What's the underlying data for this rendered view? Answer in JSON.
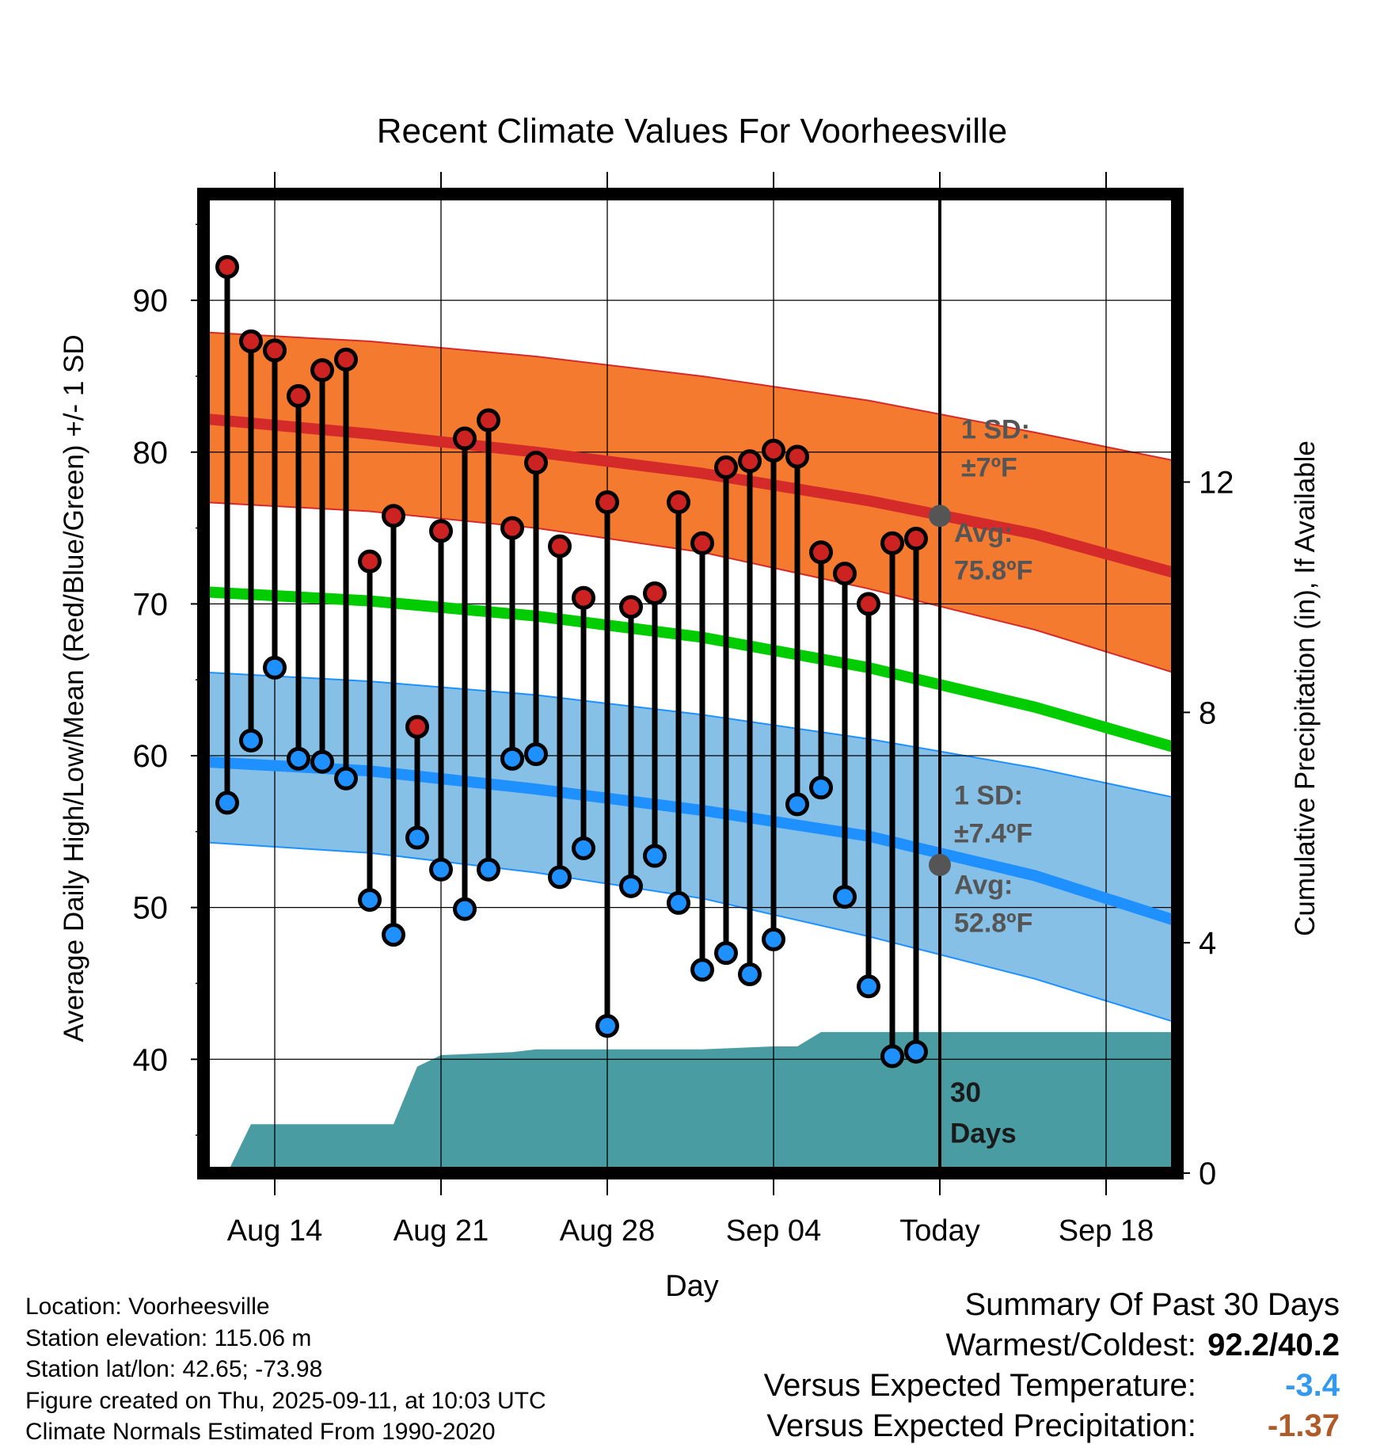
{
  "chart_data": {
    "type": "line",
    "title": "Recent Climate Values For Voorheesville",
    "xlabel": "Day",
    "ylabel": "Average Daily High/Low/Mean (Red/Blue/Green) +/- 1 SD",
    "y2label": "Cumulative Precipitation (in), If Available",
    "ylim": [
      32.5,
      97
    ],
    "y2lim": [
      0,
      17
    ],
    "y_ticks": [
      40,
      50,
      60,
      70,
      80,
      90
    ],
    "y2_ticks": [
      0,
      4,
      8,
      12
    ],
    "x_start": "2025-08-11",
    "x_end": "2025-09-21",
    "x_ticks": [
      {
        "date": "2025-08-14",
        "label": "Aug 14"
      },
      {
        "date": "2025-08-21",
        "label": "Aug 21"
      },
      {
        "date": "2025-08-28",
        "label": "Aug 28"
      },
      {
        "date": "2025-09-04",
        "label": "Sep 04"
      },
      {
        "date": "2025-09-11",
        "label": "Today"
      },
      {
        "date": "2025-09-18",
        "label": "Sep 18"
      }
    ],
    "today": "2025-09-11",
    "grid": true,
    "daily_obs": {
      "dates": [
        "2025-08-12",
        "2025-08-13",
        "2025-08-14",
        "2025-08-15",
        "2025-08-16",
        "2025-08-17",
        "2025-08-18",
        "2025-08-19",
        "2025-08-20",
        "2025-08-21",
        "2025-08-22",
        "2025-08-23",
        "2025-08-24",
        "2025-08-25",
        "2025-08-26",
        "2025-08-27",
        "2025-08-28",
        "2025-08-29",
        "2025-08-30",
        "2025-08-31",
        "2025-09-01",
        "2025-09-02",
        "2025-09-03",
        "2025-09-04",
        "2025-09-05",
        "2025-09-06",
        "2025-09-07",
        "2025-09-08",
        "2025-09-09",
        "2025-09-10"
      ],
      "high": [
        92.2,
        87.3,
        86.7,
        83.7,
        85.4,
        86.1,
        72.8,
        75.8,
        61.9,
        74.8,
        80.9,
        82.1,
        75.0,
        79.3,
        73.8,
        70.4,
        76.7,
        69.8,
        70.7,
        76.7,
        74.0,
        79.0,
        79.4,
        80.1,
        79.7,
        73.4,
        72.0,
        70.0,
        74.0,
        74.3
      ],
      "low": [
        56.9,
        61.0,
        65.8,
        59.8,
        59.6,
        58.5,
        50.5,
        48.2,
        54.6,
        52.5,
        49.9,
        52.5,
        59.8,
        60.1,
        52.0,
        53.9,
        42.2,
        51.4,
        53.4,
        50.3,
        45.9,
        47.0,
        45.6,
        47.9,
        56.8,
        57.9,
        50.7,
        44.8,
        40.2,
        40.5
      ]
    },
    "normals": {
      "dates": [
        "2025-08-11",
        "2025-08-18",
        "2025-08-25",
        "2025-09-01",
        "2025-09-08",
        "2025-09-15",
        "2025-09-21"
      ],
      "high_avg": [
        82.2,
        81.2,
        80.0,
        78.6,
        76.8,
        74.6,
        72.0
      ],
      "high_sd_upper": [
        87.9,
        87.3,
        86.3,
        85.0,
        83.4,
        81.3,
        79.4
      ],
      "high_sd_lower": [
        76.7,
        76.1,
        75.0,
        73.4,
        71.0,
        68.3,
        65.4
      ],
      "mean_avg": [
        70.8,
        70.2,
        69.2,
        67.8,
        65.8,
        63.2,
        60.5
      ],
      "low_avg": [
        59.6,
        59.0,
        57.8,
        56.4,
        54.7,
        52.1,
        49.1
      ],
      "low_sd_upper": [
        65.5,
        64.9,
        64.0,
        62.7,
        61.1,
        59.2,
        57.2
      ],
      "low_sd_lower": [
        54.3,
        53.6,
        52.3,
        50.6,
        48.1,
        45.3,
        42.4
      ]
    },
    "precip": {
      "dates": [
        "2025-08-11",
        "2025-08-12",
        "2025-08-13",
        "2025-08-14",
        "2025-08-15",
        "2025-08-18",
        "2025-08-19",
        "2025-08-20",
        "2025-08-21",
        "2025-08-24",
        "2025-08-25",
        "2025-08-28",
        "2025-09-01",
        "2025-09-04",
        "2025-09-05",
        "2025-09-06",
        "2025-09-11",
        "2025-09-21"
      ],
      "cumulative_in": [
        0.0,
        0.0,
        0.85,
        0.85,
        0.85,
        0.85,
        0.85,
        1.85,
        2.05,
        2.1,
        2.15,
        2.15,
        2.15,
        2.2,
        2.2,
        2.45,
        2.45,
        2.45
      ]
    },
    "annotations": {
      "high_sd": {
        "line1": "1 SD:",
        "line2": "±7ºF"
      },
      "high_today_avg": {
        "value": 75.8,
        "line1": "Avg:",
        "line2": "75.8ºF"
      },
      "low_sd": {
        "line1": "1 SD:",
        "line2": "±7.4ºF"
      },
      "low_today_avg": {
        "value": 52.8,
        "line1": "Avg:",
        "line2": "52.8ºF"
      },
      "window": {
        "line1": "30",
        "line2": "Days"
      }
    },
    "colors": {
      "high_band": "#f47a30",
      "high_line": "#d42a2a",
      "mean_line": "#00cc00",
      "low_band": "#86c0e6",
      "low_line": "#1e90ff",
      "precip_fill": "#4a9ca3",
      "high_marker": "#cc2222",
      "low_marker": "#1e90ff",
      "avg_marker": "#555555",
      "annotation_text": "#555555"
    }
  },
  "info": {
    "location": "Location: Voorheesville",
    "elevation": "Station elevation: 115.06 m",
    "latlon": "Station lat/lon: 42.65; -73.98",
    "created": "Figure created on Thu, 2025-09-11, at 10:03 UTC",
    "normals": "Climate Normals Estimated From 1990-2020"
  },
  "summary": {
    "title": "Summary Of Past 30 Days",
    "warm_cold_label": "Warmest/Coldest:",
    "warm_cold_value": "92.2/40.2",
    "temp_label": "Versus Expected Temperature:",
    "temp_value": "-3.4",
    "temp_color": "#3399ee",
    "precip_label": "Versus Expected Precipitation:",
    "precip_value": "-1.37",
    "precip_color": "#b05a28"
  }
}
